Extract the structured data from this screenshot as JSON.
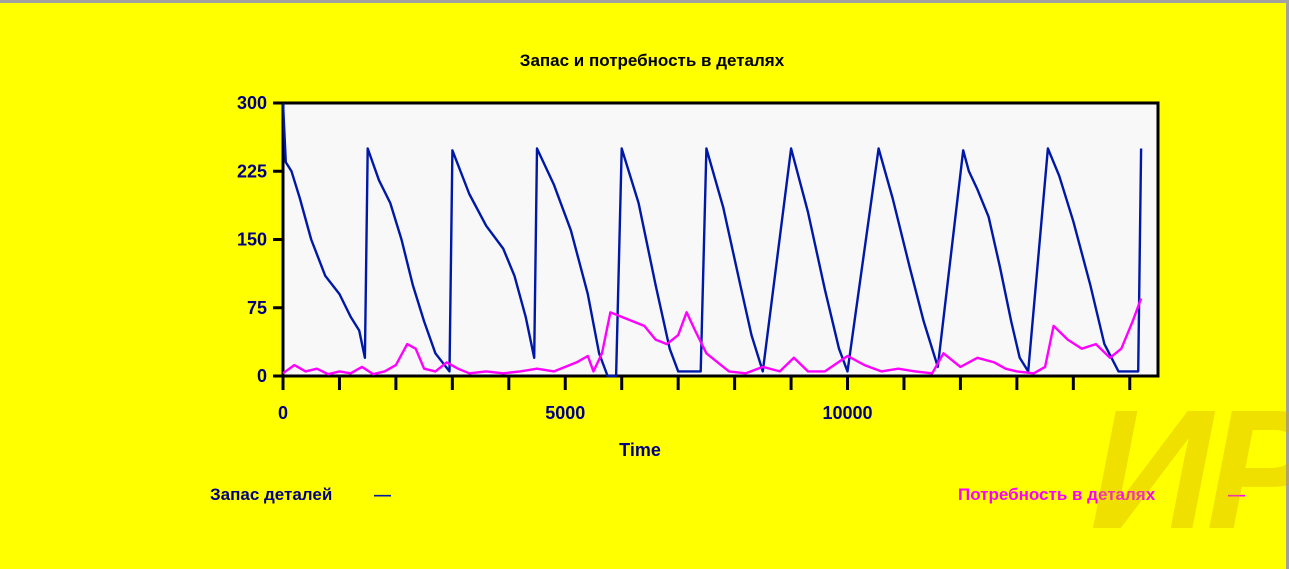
{
  "chart_data": {
    "type": "line",
    "title": "Запас и потребность в деталях",
    "xlabel": "Time",
    "ylabel": "",
    "xlim": [
      0,
      15500
    ],
    "ylim": [
      0,
      300
    ],
    "x_ticks": [
      0,
      5000,
      10000
    ],
    "x_tick_labels": [
      "0",
      "5000",
      "10000"
    ],
    "x_minor_step": 1000,
    "y_ticks": [
      0,
      75,
      150,
      225,
      300
    ],
    "y_tick_labels": [
      "0",
      "75",
      "150",
      "225",
      "300"
    ],
    "grid": false,
    "legend_position": "bottom",
    "colors": {
      "background": "#ffff00",
      "plot_area": "#f8f8f8",
      "text": "#000080"
    },
    "series": [
      {
        "name": "Запас деталей",
        "color": "#0018a8",
        "points": [
          [
            0,
            300
          ],
          [
            50,
            235
          ],
          [
            150,
            225
          ],
          [
            300,
            195
          ],
          [
            500,
            150
          ],
          [
            750,
            110
          ],
          [
            1000,
            90
          ],
          [
            1200,
            65
          ],
          [
            1350,
            50
          ],
          [
            1450,
            20
          ],
          [
            1500,
            250
          ],
          [
            1700,
            215
          ],
          [
            1900,
            190
          ],
          [
            2100,
            150
          ],
          [
            2300,
            100
          ],
          [
            2500,
            60
          ],
          [
            2700,
            25
          ],
          [
            2950,
            5
          ],
          [
            3000,
            248
          ],
          [
            3300,
            200
          ],
          [
            3600,
            165
          ],
          [
            3900,
            140
          ],
          [
            4100,
            110
          ],
          [
            4300,
            65
          ],
          [
            4450,
            20
          ],
          [
            4500,
            250
          ],
          [
            4800,
            210
          ],
          [
            5100,
            160
          ],
          [
            5400,
            90
          ],
          [
            5600,
            25
          ],
          [
            5750,
            0
          ],
          [
            5900,
            0
          ],
          [
            6000,
            250
          ],
          [
            6300,
            190
          ],
          [
            6600,
            100
          ],
          [
            6850,
            30
          ],
          [
            7000,
            5
          ],
          [
            7400,
            5
          ],
          [
            7500,
            250
          ],
          [
            7800,
            185
          ],
          [
            8100,
            100
          ],
          [
            8300,
            45
          ],
          [
            8500,
            5
          ],
          [
            9000,
            250
          ],
          [
            9300,
            180
          ],
          [
            9600,
            95
          ],
          [
            9850,
            30
          ],
          [
            10000,
            5
          ],
          [
            10550,
            250
          ],
          [
            10800,
            195
          ],
          [
            11100,
            120
          ],
          [
            11350,
            60
          ],
          [
            11600,
            10
          ],
          [
            12050,
            248
          ],
          [
            12150,
            225
          ],
          [
            12300,
            205
          ],
          [
            12500,
            175
          ],
          [
            12700,
            120
          ],
          [
            12900,
            60
          ],
          [
            13050,
            20
          ],
          [
            13200,
            5
          ],
          [
            13550,
            250
          ],
          [
            13750,
            220
          ],
          [
            14000,
            170
          ],
          [
            14300,
            100
          ],
          [
            14550,
            35
          ],
          [
            14800,
            5
          ],
          [
            15150,
            5
          ],
          [
            15200,
            250
          ]
        ]
      },
      {
        "name": "Потребность в деталях",
        "color": "#ff00ff",
        "points": [
          [
            0,
            3
          ],
          [
            200,
            12
          ],
          [
            400,
            5
          ],
          [
            600,
            8
          ],
          [
            800,
            2
          ],
          [
            1000,
            5
          ],
          [
            1200,
            3
          ],
          [
            1400,
            10
          ],
          [
            1600,
            2
          ],
          [
            1800,
            5
          ],
          [
            2000,
            12
          ],
          [
            2200,
            35
          ],
          [
            2350,
            30
          ],
          [
            2500,
            8
          ],
          [
            2700,
            5
          ],
          [
            2900,
            15
          ],
          [
            3100,
            8
          ],
          [
            3300,
            3
          ],
          [
            3600,
            5
          ],
          [
            3900,
            3
          ],
          [
            4200,
            5
          ],
          [
            4500,
            8
          ],
          [
            4800,
            5
          ],
          [
            5200,
            15
          ],
          [
            5400,
            22
          ],
          [
            5500,
            5
          ],
          [
            5650,
            25
          ],
          [
            5800,
            70
          ],
          [
            6000,
            65
          ],
          [
            6200,
            60
          ],
          [
            6400,
            55
          ],
          [
            6600,
            40
          ],
          [
            6800,
            35
          ],
          [
            7000,
            45
          ],
          [
            7150,
            70
          ],
          [
            7300,
            50
          ],
          [
            7500,
            25
          ],
          [
            7700,
            15
          ],
          [
            7900,
            5
          ],
          [
            8200,
            3
          ],
          [
            8500,
            10
          ],
          [
            8800,
            5
          ],
          [
            9050,
            20
          ],
          [
            9300,
            5
          ],
          [
            9600,
            5
          ],
          [
            10000,
            22
          ],
          [
            10300,
            12
          ],
          [
            10600,
            5
          ],
          [
            10900,
            8
          ],
          [
            11200,
            5
          ],
          [
            11500,
            3
          ],
          [
            11700,
            25
          ],
          [
            12000,
            10
          ],
          [
            12300,
            20
          ],
          [
            12600,
            15
          ],
          [
            12800,
            8
          ],
          [
            13000,
            5
          ],
          [
            13300,
            3
          ],
          [
            13500,
            10
          ],
          [
            13650,
            55
          ],
          [
            13900,
            40
          ],
          [
            14150,
            30
          ],
          [
            14400,
            35
          ],
          [
            14650,
            20
          ],
          [
            14850,
            30
          ],
          [
            15050,
            60
          ],
          [
            15200,
            85
          ]
        ]
      }
    ]
  },
  "legend": {
    "stock_label": "Запас деталей",
    "demand_label": "Потребность в деталях",
    "stock_swatch": "—",
    "demand_swatch": "—"
  },
  "watermark_text": "ИР"
}
